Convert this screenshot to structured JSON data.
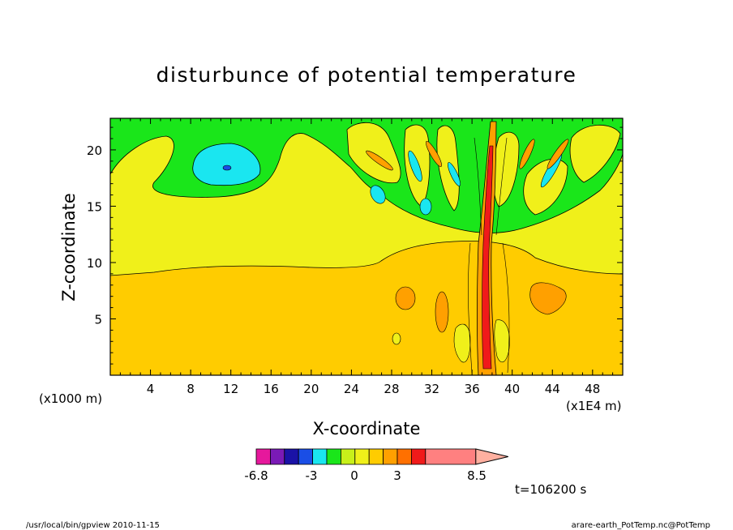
{
  "chart_data": {
    "type": "heatmap",
    "title": "disturbunce of potential temperature",
    "xlabel": "X-coordinate",
    "ylabel": "Z-coordinate",
    "x_unit_left": "(x1000 m)",
    "x_unit_right": "(x1E4 m)",
    "x_ticks": [
      4,
      8,
      12,
      16,
      20,
      24,
      28,
      32,
      36,
      40,
      44,
      48
    ],
    "y_ticks": [
      5,
      10,
      15,
      20
    ],
    "xlim": [
      0,
      51
    ],
    "ylim": [
      0,
      22.8
    ],
    "colorbar": {
      "colors": [
        "#e6189c",
        "#7a1ab6",
        "#1a12a6",
        "#1a4ee6",
        "#1ae6f0",
        "#1ae61a",
        "#c8f01a",
        "#f0f01a",
        "#ffcc00",
        "#ffa000",
        "#ff7000",
        "#f01a1a",
        "#ff8080",
        "#ffb0a0"
      ],
      "labels": [
        "-6.8",
        "-3",
        "0",
        "3",
        "8.5"
      ],
      "label_positions": [
        -6.8,
        -3,
        0,
        3,
        8.5
      ]
    },
    "time_label": "t=106200 s"
  },
  "footer": {
    "left": "/usr/local/bin/gpview   2010-11-15",
    "right": "arare-earth_PotTemp.nc@PotTemp"
  }
}
